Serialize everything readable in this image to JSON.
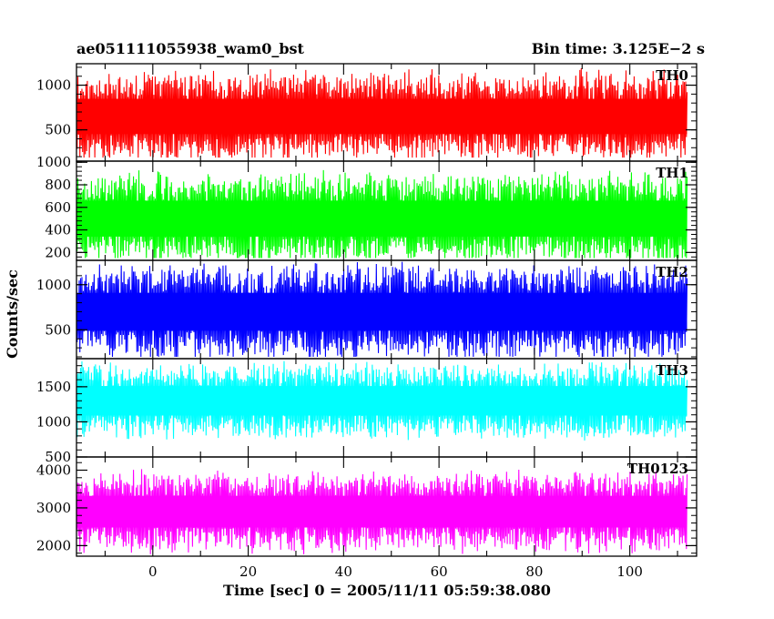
{
  "header": {
    "title": "ae051111055938_wam0_bst",
    "bin_time": "Bin time: 3.125E−2 s"
  },
  "chart_data": {
    "type": "line",
    "xlabel": "Time [sec] 0 = 2005/11/11 05:59:38.080",
    "ylabel": "Counts/sec",
    "xlim": [
      -16,
      114
    ],
    "x_ticks": [
      0,
      20,
      40,
      60,
      80,
      100
    ],
    "x_range": [
      -16,
      112
    ],
    "series": [
      {
        "name": "TH0",
        "color": "#ff0000",
        "ylim": [
          150,
          1240
        ],
        "y_ticks": [
          500,
          1000
        ],
        "mean": 650,
        "amplitude": 470,
        "clip_min": 190,
        "clip_max": 1230,
        "seed": 11
      },
      {
        "name": "TH1",
        "color": "#00ff00",
        "ylim": [
          130,
          1010
        ],
        "y_ticks": [
          200,
          400,
          600,
          800,
          1000
        ],
        "mean": 500,
        "amplitude": 380,
        "clip_min": 150,
        "clip_max": 990,
        "seed": 23
      },
      {
        "name": "TH2",
        "color": "#0000ff",
        "ylim": [
          180,
          1270
        ],
        "y_ticks": [
          500,
          1000
        ],
        "mean": 700,
        "amplitude": 500,
        "clip_min": 200,
        "clip_max": 1260,
        "seed": 37
      },
      {
        "name": "TH3",
        "color": "#00ffff",
        "ylim": [
          500,
          1900
        ],
        "y_ticks": [
          500,
          1000,
          1500
        ],
        "mean": 1300,
        "amplitude": 500,
        "clip_min": 560,
        "clip_max": 1890,
        "seed": 41
      },
      {
        "name": "TH0123",
        "color": "#ff00ff",
        "ylim": [
          1720,
          4350
        ],
        "y_ticks": [
          2000,
          3000,
          4000
        ],
        "mean": 2900,
        "amplitude": 1000,
        "clip_min": 1750,
        "clip_max": 4300,
        "seed": 53
      }
    ]
  }
}
